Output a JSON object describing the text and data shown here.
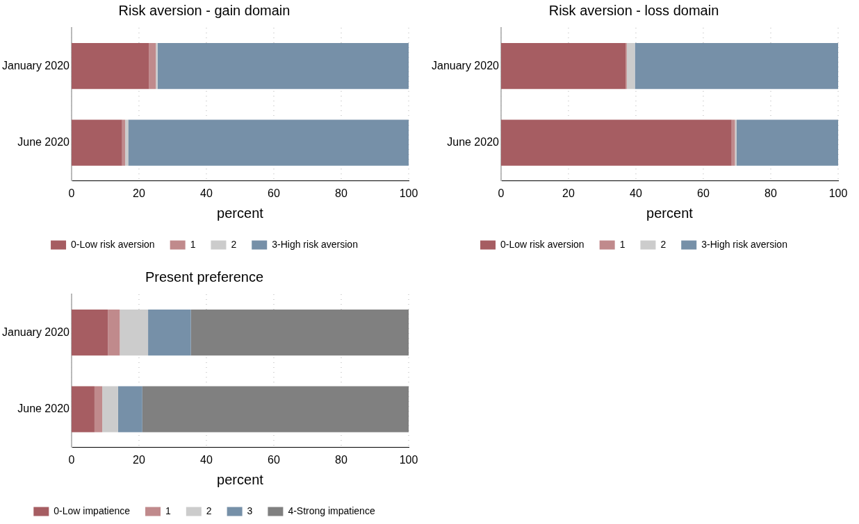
{
  "chart_data": [
    {
      "type": "bar",
      "orientation": "horizontal",
      "stacked": true,
      "title": "Risk aversion - gain domain",
      "xlabel": "percent",
      "categories": [
        "January 2020",
        "June 2020"
      ],
      "xlim": [
        0,
        100
      ],
      "xticks": [
        0,
        20,
        40,
        60,
        80,
        100
      ],
      "grid": "x",
      "legend": "bottom",
      "series": [
        {
          "name": "0-Low risk aversion",
          "color": "#a65d62",
          "values": [
            23.0,
            15.0
          ]
        },
        {
          "name": "1",
          "color": "#c08a8c",
          "values": [
            2.0,
            0.9
          ]
        },
        {
          "name": "2",
          "color": "#cccccc",
          "values": [
            0.5,
            0.9
          ]
        },
        {
          "name": "3-High risk aversion",
          "color": "#7690a8",
          "values": [
            74.5,
            83.2
          ]
        }
      ]
    },
    {
      "type": "bar",
      "orientation": "horizontal",
      "stacked": true,
      "title": "Risk aversion - loss domain",
      "xlabel": "percent",
      "categories": [
        "January 2020",
        "June 2020"
      ],
      "xlim": [
        0,
        100
      ],
      "xticks": [
        0,
        20,
        40,
        60,
        80,
        100
      ],
      "grid": "x",
      "legend": "bottom",
      "series": [
        {
          "name": "0-Low risk aversion",
          "color": "#a65d62",
          "values": [
            37.0,
            68.4
          ]
        },
        {
          "name": "1",
          "color": "#c08a8c",
          "values": [
            0.3,
            1.0
          ]
        },
        {
          "name": "2",
          "color": "#cccccc",
          "values": [
            2.4,
            0.5
          ]
        },
        {
          "name": "3-High risk aversion",
          "color": "#7690a8",
          "values": [
            60.3,
            30.1
          ]
        }
      ]
    },
    {
      "type": "bar",
      "orientation": "horizontal",
      "stacked": true,
      "title": "Present preference",
      "xlabel": "percent",
      "categories": [
        "January 2020",
        "June 2020"
      ],
      "xlim": [
        0,
        100
      ],
      "xticks": [
        0,
        20,
        40,
        60,
        80,
        100
      ],
      "grid": "x",
      "legend": "bottom",
      "series": [
        {
          "name": "0-Low impatience",
          "color": "#a65d62",
          "values": [
            10.8,
            6.8
          ]
        },
        {
          "name": "1",
          "color": "#c08a8c",
          "values": [
            3.5,
            2.3
          ]
        },
        {
          "name": "2",
          "color": "#cccccc",
          "values": [
            8.4,
            4.7
          ]
        },
        {
          "name": "3",
          "color": "#7690a8",
          "values": [
            12.7,
            7.2
          ]
        },
        {
          "name": "4-Strong impatience",
          "color": "#808080",
          "values": [
            64.6,
            79.0
          ]
        }
      ]
    }
  ]
}
